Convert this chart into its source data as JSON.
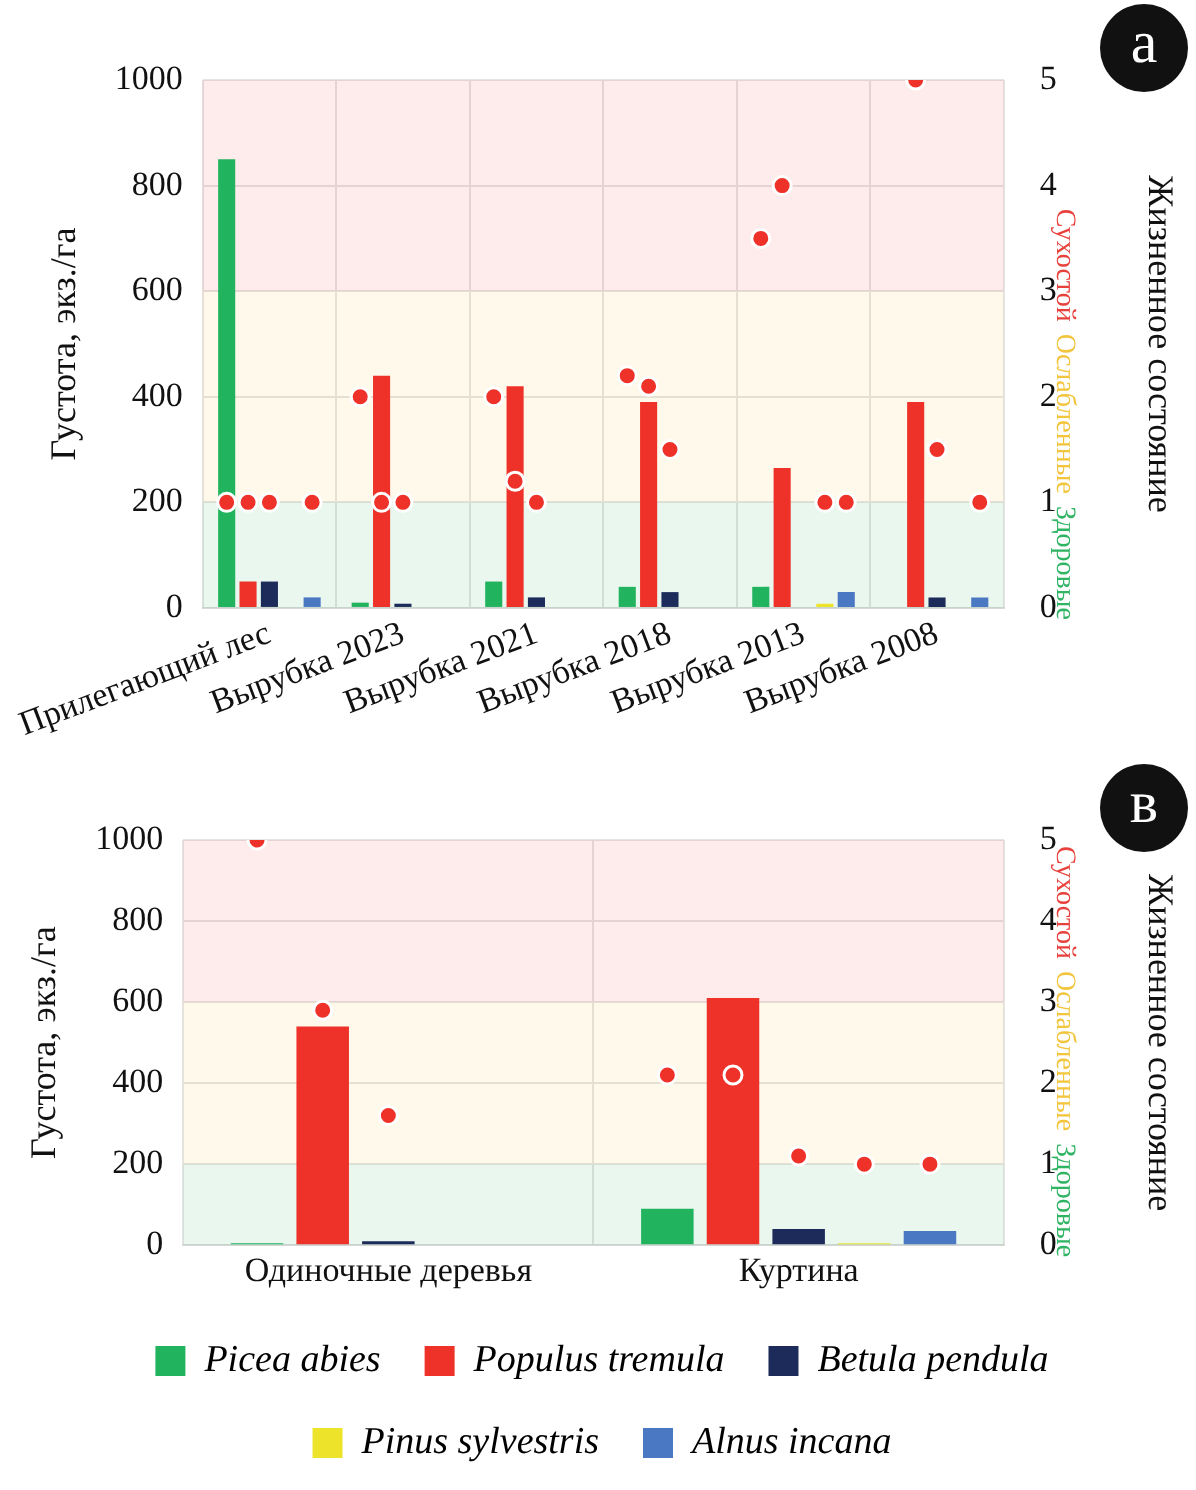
{
  "chart_data": [
    {
      "type": "bar",
      "categories": [
        "Прилегающий лес",
        "Вырубка 2023",
        "Вырубка 2021",
        "Вырубка 2018",
        "Вырубка 2013",
        "Вырубка 2008"
      ],
      "ylabel": "Густота, экз./га",
      "y2label": "Жизненное состояние",
      "ylim": [
        0,
        1000
      ],
      "yticks": [
        0,
        200,
        400,
        600,
        800,
        1000
      ],
      "y2lim": [
        0,
        5
      ],
      "y2ticks": [
        0,
        1,
        2,
        3,
        4,
        5
      ],
      "grid": true,
      "legend": false,
      "annotations": [
        "а"
      ],
      "bands": [
        {
          "axis": "y2",
          "from": 0,
          "to": 1,
          "label": "Здоровые",
          "color": "#2fb463"
        },
        {
          "axis": "y2",
          "from": 1,
          "to": 3,
          "label": "Ослабленные",
          "color": "#f2c53c"
        },
        {
          "axis": "y2",
          "from": 3,
          "to": 5,
          "label": "Сухостой",
          "color": "#e8413c"
        }
      ],
      "series": [
        {
          "type": "bar",
          "color": "#22b35e",
          "values": [
            850,
            10,
            50,
            40,
            40,
            null
          ]
        },
        {
          "type": "bar",
          "color": "#ee3129",
          "values": [
            50,
            440,
            420,
            390,
            265,
            390
          ]
        },
        {
          "type": "bar",
          "color": "#1c2b5a",
          "values": [
            50,
            8,
            20,
            30,
            null,
            20
          ]
        },
        {
          "type": "bar",
          "color": "#ece32a",
          "values": [
            null,
            null,
            null,
            null,
            8,
            null
          ]
        },
        {
          "type": "bar",
          "color": "#4a78c2",
          "values": [
            20,
            null,
            null,
            null,
            30,
            20
          ]
        },
        {
          "type": "scatter",
          "axis": "y2",
          "color": "#ee3129",
          "values": [
            1.0,
            2.0,
            2.0,
            2.2,
            3.5,
            null
          ]
        },
        {
          "type": "scatter",
          "axis": "y2",
          "color": "#ee3129",
          "values": [
            1.0,
            1.0,
            1.2,
            2.1,
            4.0,
            5.0
          ]
        },
        {
          "type": "scatter",
          "axis": "y2",
          "color": "#ee3129",
          "values": [
            1.0,
            1.0,
            1.0,
            1.5,
            null,
            1.5
          ]
        },
        {
          "type": "scatter",
          "axis": "y2",
          "color": "#ee3129",
          "values": [
            null,
            null,
            null,
            null,
            1.0,
            null
          ]
        },
        {
          "type": "scatter",
          "axis": "y2",
          "color": "#ee3129",
          "values": [
            1.0,
            null,
            null,
            null,
            1.0,
            1.0
          ]
        }
      ]
    },
    {
      "type": "bar",
      "categories": [
        "Одиночные деревья",
        "Куртина"
      ],
      "ylabel": "Густота, экз./га",
      "y2label": "Жизненное состояние",
      "ylim": [
        0,
        1000
      ],
      "yticks": [
        0,
        200,
        400,
        600,
        800,
        1000
      ],
      "y2lim": [
        0,
        5
      ],
      "y2ticks": [
        0,
        1,
        2,
        3,
        4,
        5
      ],
      "grid": true,
      "legend": "bottom",
      "annotations": [
        "в"
      ],
      "bands": [
        {
          "axis": "y2",
          "from": 0,
          "to": 1,
          "label": "Здоровые",
          "color": "#2fb463"
        },
        {
          "axis": "y2",
          "from": 1,
          "to": 3,
          "label": "Ослабленные",
          "color": "#f2c53c"
        },
        {
          "axis": "y2",
          "from": 3,
          "to": 5,
          "label": "Сухостой",
          "color": "#e8413c"
        }
      ],
      "series": [
        {
          "name": "Picea abies",
          "type": "bar",
          "color": "#22b35e",
          "values": [
            5,
            90
          ]
        },
        {
          "name": "Populus tremula",
          "type": "bar",
          "color": "#ee3129",
          "values": [
            540,
            610
          ]
        },
        {
          "name": "Betula pendula",
          "type": "bar",
          "color": "#1c2b5a",
          "values": [
            10,
            40
          ]
        },
        {
          "name": "Pinus sylvestris",
          "type": "bar",
          "color": "#ece32a",
          "values": [
            null,
            5
          ]
        },
        {
          "name": "Alnus incana",
          "type": "bar",
          "color": "#4a78c2",
          "values": [
            null,
            35
          ]
        },
        {
          "type": "scatter",
          "axis": "y2",
          "color": "#ee3129",
          "values": [
            5.0,
            2.1
          ]
        },
        {
          "type": "scatter",
          "axis": "y2",
          "color": "#ee3129",
          "values": [
            2.9,
            2.1
          ]
        },
        {
          "type": "scatter",
          "axis": "y2",
          "color": "#ee3129",
          "values": [
            1.6,
            1.1
          ]
        },
        {
          "type": "scatter",
          "axis": "y2",
          "color": "#ee3129",
          "values": [
            null,
            1.0
          ]
        },
        {
          "type": "scatter",
          "axis": "y2",
          "color": "#ee3129",
          "values": [
            null,
            1.0
          ]
        }
      ]
    }
  ]
}
